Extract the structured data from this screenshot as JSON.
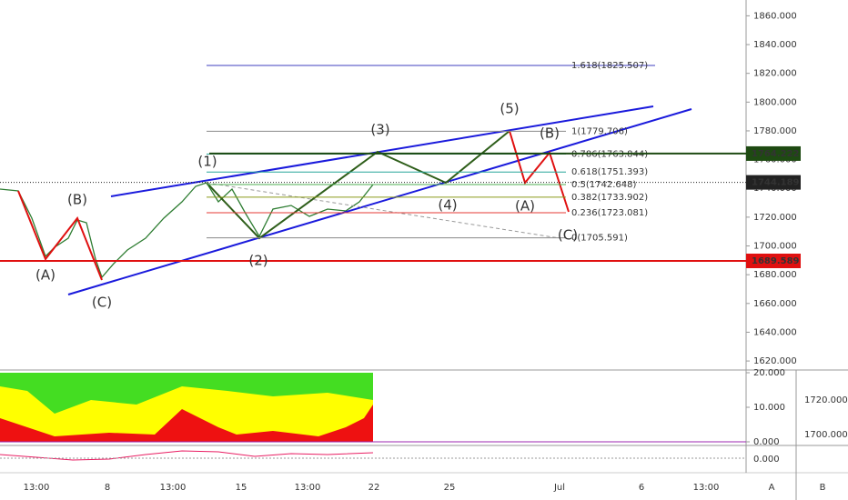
{
  "price_axis": {
    "ylim": [
      1615,
      1871
    ],
    "ticks": [
      {
        "value": 1620,
        "label": "1620.000"
      },
      {
        "value": 1640,
        "label": "1640.000"
      },
      {
        "value": 1660,
        "label": "1660.000"
      },
      {
        "value": 1680,
        "label": "1680.000"
      },
      {
        "value": 1700,
        "label": "1700.000"
      },
      {
        "value": 1720,
        "label": "1720.000"
      },
      {
        "value": 1740,
        "label": "1740.000"
      },
      {
        "value": 1760,
        "label": "1760.000"
      },
      {
        "value": 1780,
        "label": "1780.000"
      },
      {
        "value": 1800,
        "label": "1800.000"
      },
      {
        "value": 1820,
        "label": "1820.000"
      },
      {
        "value": 1840,
        "label": "1840.000"
      },
      {
        "value": 1860,
        "label": "1860.000"
      }
    ]
  },
  "fib_levels": [
    {
      "value": 1825.507,
      "label": "1.618(1825.507)"
    },
    {
      "value": 1779.706,
      "label": "1(1779.706)"
    },
    {
      "value": 1763.844,
      "label": "0.786(1763.844)"
    },
    {
      "value": 1751.393,
      "label": "0.618(1751.393)"
    },
    {
      "value": 1742.648,
      "label": "0.5(1742.648)"
    },
    {
      "value": 1733.902,
      "label": "0.382(1733.902)"
    },
    {
      "value": 1723.081,
      "label": "0.236(1723.081)"
    },
    {
      "value": 1705.591,
      "label": "0(1705.591)"
    }
  ],
  "price_tags": [
    {
      "value": 1764.222,
      "label": "1764.222"
    },
    {
      "value": 1744.189,
      "label": "1744.189"
    },
    {
      "value": 1689.589,
      "label": "1689.589"
    }
  ],
  "wave_labels": [
    "(1)",
    "(2)",
    "(3)",
    "(4)",
    "(5)",
    "(A)",
    "(B)",
    "(C)",
    "(A)",
    "(B)",
    "(C)"
  ],
  "time_axis": [
    "13:00",
    "8",
    "13:00",
    "15",
    "13:00",
    "22",
    "25",
    "Jul",
    "6",
    "13:00"
  ],
  "indicator_axis": [
    {
      "value": 20,
      "label": "20.000"
    },
    {
      "value": 10,
      "label": "10.000"
    },
    {
      "value": 0,
      "label": "0.000"
    }
  ],
  "indicator_price_axis": [
    "1720.000",
    "1700.000"
  ],
  "macd_axis": [
    "0.000"
  ],
  "buttons": [
    "A",
    "B"
  ]
}
